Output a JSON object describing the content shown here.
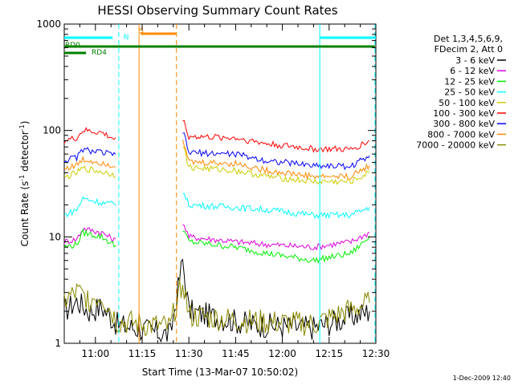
{
  "chart_data": {
    "type": "line",
    "title": "HESSI Observing Summary Count Rates",
    "xlabel": "Start Time (13-Mar-07 10:50:02)",
    "ylabel_main": "Count Rate (s",
    "ylabel_sup1": "-1",
    "ylabel_mid": " detector",
    "ylabel_sup2": "-1",
    "ylabel_end": ")",
    "yscale": "log",
    "ylim": [
      1,
      1000
    ],
    "xlim_min": [
      0,
      100
    ],
    "yticks": [
      {
        "value": 1,
        "label": "1"
      },
      {
        "value": 10,
        "label": "10"
      },
      {
        "value": 100,
        "label": "100"
      },
      {
        "value": 1000,
        "label": "1000"
      }
    ],
    "xticks": [
      {
        "value": 10,
        "label": "11:00"
      },
      {
        "value": 25,
        "label": "11:15"
      },
      {
        "value": 40,
        "label": "11:30"
      },
      {
        "value": 55,
        "label": "11:45"
      },
      {
        "value": 70,
        "label": "12:00"
      },
      {
        "value": 85,
        "label": "12:15"
      },
      {
        "value": 100,
        "label": "12:30"
      }
    ],
    "legend_header": [
      "Det 1,3,4,5,6,9,",
      "FDecim 2, Att 0"
    ],
    "series": [
      {
        "name": "3 - 6 keV",
        "color": "#000000",
        "values": [
          [
            0,
            2
          ],
          [
            4,
            2.5
          ],
          [
            8,
            2
          ],
          [
            12,
            2.2
          ],
          [
            17,
            1.5
          ],
          [
            34,
            1.2
          ],
          [
            38,
            6
          ],
          [
            40,
            2
          ],
          [
            60,
            1.5
          ],
          [
            80,
            1.4
          ],
          [
            98,
            2
          ]
        ]
      },
      {
        "name": "6 - 12 keV",
        "color": "#dd00dd",
        "values": [
          [
            0,
            9
          ],
          [
            4,
            9.5
          ],
          [
            6,
            12
          ],
          [
            12,
            11
          ],
          [
            17,
            9
          ],
          [
            38,
            14
          ],
          [
            40,
            10
          ],
          [
            55,
            9
          ],
          [
            65,
            8.5
          ],
          [
            80,
            8
          ],
          [
            92,
            9
          ],
          [
            98,
            11
          ]
        ]
      },
      {
        "name": "12 - 25 keV",
        "color": "#00ee00",
        "values": [
          [
            0,
            8
          ],
          [
            4,
            8.5
          ],
          [
            6,
            11
          ],
          [
            12,
            10
          ],
          [
            17,
            8
          ],
          [
            38,
            12
          ],
          [
            40,
            9
          ],
          [
            55,
            8
          ],
          [
            65,
            7
          ],
          [
            80,
            6
          ],
          [
            92,
            7
          ],
          [
            98,
            10
          ]
        ]
      },
      {
        "name": "25 - 50 keV",
        "color": "#00ffff",
        "values": [
          [
            0,
            16
          ],
          [
            4,
            18
          ],
          [
            6,
            23
          ],
          [
            12,
            21
          ],
          [
            17,
            20
          ],
          [
            38,
            27
          ],
          [
            40,
            20
          ],
          [
            55,
            19
          ],
          [
            65,
            18
          ],
          [
            80,
            16
          ],
          [
            92,
            16
          ],
          [
            98,
            19
          ]
        ]
      },
      {
        "name": "50 - 100 keV",
        "color": "#cccc00",
        "values": [
          [
            0,
            36
          ],
          [
            4,
            40
          ],
          [
            6,
            44
          ],
          [
            12,
            41
          ],
          [
            17,
            38
          ],
          [
            38,
            75
          ],
          [
            40,
            45
          ],
          [
            55,
            42
          ],
          [
            65,
            37
          ],
          [
            80,
            33
          ],
          [
            92,
            33
          ],
          [
            98,
            40
          ]
        ]
      },
      {
        "name": "100 - 300 keV",
        "color": "#ff0000",
        "values": [
          [
            0,
            80
          ],
          [
            4,
            85
          ],
          [
            6,
            100
          ],
          [
            12,
            95
          ],
          [
            17,
            80
          ],
          [
            38,
            130
          ],
          [
            40,
            88
          ],
          [
            55,
            85
          ],
          [
            65,
            75
          ],
          [
            80,
            67
          ],
          [
            92,
            66
          ],
          [
            98,
            80
          ]
        ]
      },
      {
        "name": "300 - 800 keV",
        "color": "#0000ff",
        "values": [
          [
            0,
            52
          ],
          [
            4,
            56
          ],
          [
            6,
            66
          ],
          [
            12,
            62
          ],
          [
            17,
            58
          ],
          [
            38,
            100
          ],
          [
            40,
            62
          ],
          [
            55,
            60
          ],
          [
            65,
            52
          ],
          [
            80,
            47
          ],
          [
            92,
            46
          ],
          [
            98,
            58
          ]
        ]
      },
      {
        "name": "800 - 7000 keV",
        "color": "#ff8800",
        "values": [
          [
            0,
            44
          ],
          [
            4,
            47
          ],
          [
            6,
            53
          ],
          [
            12,
            50
          ],
          [
            17,
            46
          ],
          [
            38,
            87
          ],
          [
            40,
            50
          ],
          [
            55,
            49
          ],
          [
            65,
            42
          ],
          [
            80,
            37
          ],
          [
            92,
            37
          ],
          [
            98,
            47
          ]
        ]
      },
      {
        "name": "7000 - 20000 keV",
        "color": "#888800",
        "values": [
          [
            0,
            2.5
          ],
          [
            4,
            3
          ],
          [
            8,
            2.6
          ],
          [
            12,
            2.8
          ],
          [
            17,
            1.6
          ],
          [
            34,
            1.4
          ],
          [
            38,
            4
          ],
          [
            40,
            1.8
          ],
          [
            60,
            1.6
          ],
          [
            80,
            1.5
          ],
          [
            98,
            2.4
          ]
        ]
      }
    ],
    "annotations": {
      "flag_labels": [
        {
          "text": "N",
          "color": "#00ffff"
        },
        {
          "text": "S",
          "color": "#ff8800"
        },
        {
          "text": "RD0",
          "color": "#008000"
        },
        {
          "text": "RD4",
          "color": "#008000"
        }
      ]
    },
    "grid": false,
    "legend_position": "right"
  },
  "footer": {
    "date": "1-Dec-2009 12:40"
  }
}
